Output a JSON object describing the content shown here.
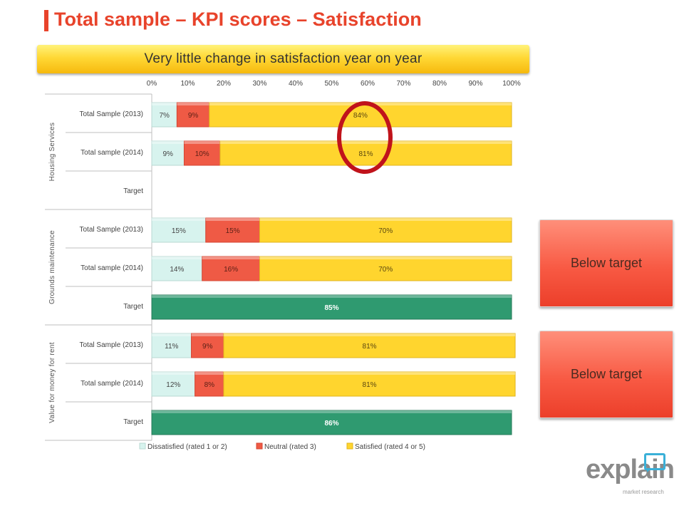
{
  "header": {
    "title": "Total sample – KPI scores – Satisfaction"
  },
  "banner": {
    "text": "Very little change in satisfaction year on year"
  },
  "callouts": [
    {
      "label": "Below target"
    },
    {
      "label": "Below target"
    }
  ],
  "logo": {
    "word": "explain",
    "tagline": "market research"
  },
  "colors": {
    "dissatisfied": "#d7f3ee",
    "neutral": "#ef5a45",
    "satisfied": "#ffd52e",
    "target": "#2f9a70",
    "highlight_ring": "#c0131b",
    "title": "#e8432b"
  },
  "chart_data": {
    "type": "bar",
    "orientation": "horizontal",
    "stacked": true,
    "xlim": [
      0,
      100
    ],
    "x_ticks": [
      "0%",
      "10%",
      "20%",
      "30%",
      "40%",
      "50%",
      "60%",
      "70%",
      "80%",
      "90%",
      "100%"
    ],
    "groups": [
      {
        "name": "Housing Services",
        "rows": [
          {
            "label": "Total Sample (2013)",
            "values": [
              7,
              9,
              84
            ]
          },
          {
            "label": "Total sample (2014)",
            "values": [
              9,
              10,
              81
            ]
          },
          {
            "label": "Target",
            "target": null
          }
        ]
      },
      {
        "name": "Grounds maintenance",
        "rows": [
          {
            "label": "Total Sample (2013)",
            "values": [
              15,
              15,
              70
            ]
          },
          {
            "label": "Total sample (2014)",
            "values": [
              14,
              16,
              70
            ]
          },
          {
            "label": "Target",
            "target": 85
          }
        ]
      },
      {
        "name": "Value for money for rent",
        "rows": [
          {
            "label": "Total Sample (2013)",
            "values": [
              11,
              9,
              81
            ]
          },
          {
            "label": "Total sample (2014)",
            "values": [
              12,
              8,
              81
            ]
          },
          {
            "label": "Target",
            "target": 86
          }
        ]
      }
    ],
    "series": [
      {
        "name": "Dissatisfied (rated 1 or 2)"
      },
      {
        "name": "Neutral (rated 3)"
      },
      {
        "name": "Satisfied (rated 4 or 5)"
      }
    ],
    "legend": "bottom",
    "grid": false,
    "annotation": "ring around Housing Services satisfied labels"
  }
}
